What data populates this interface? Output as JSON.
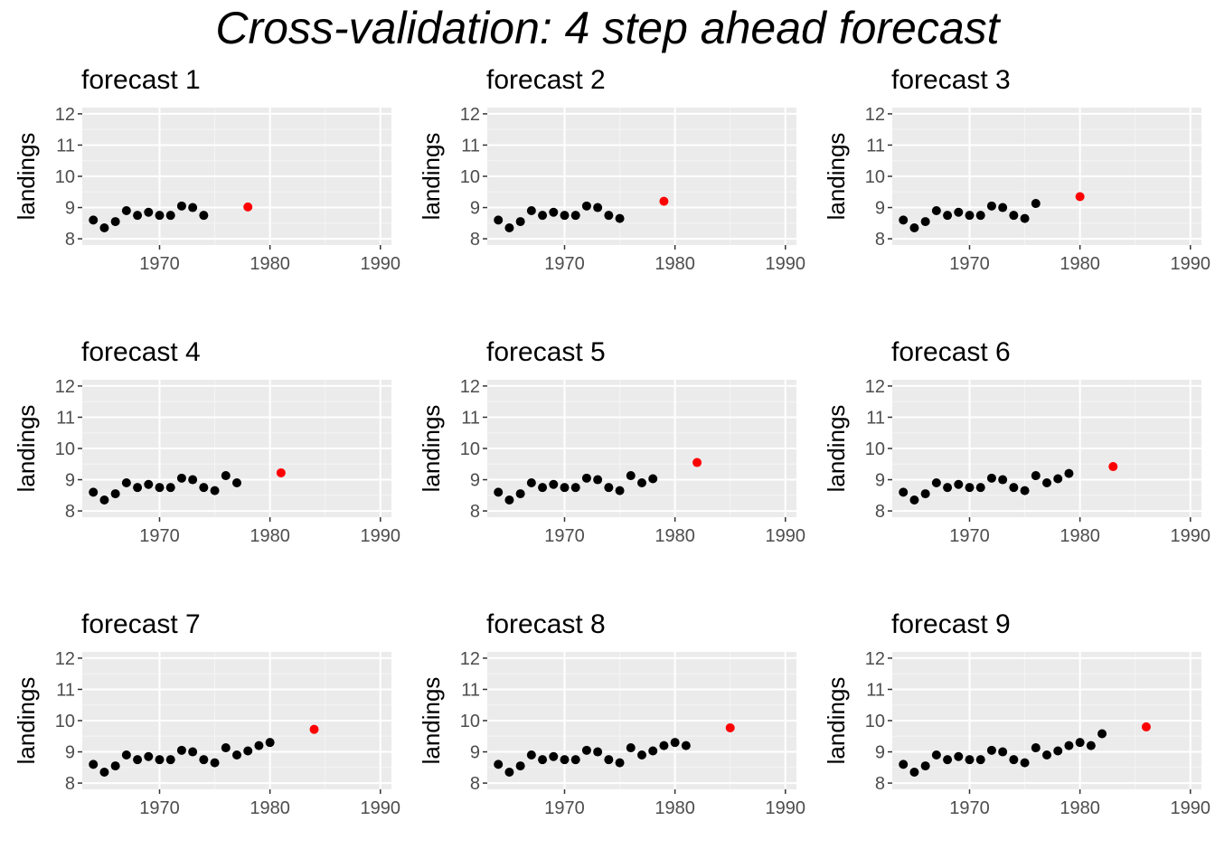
{
  "title": "Cross-validation: 4 step ahead forecast",
  "colors": {
    "panel_background": "#ebebeb",
    "grid_major": "#ffffff",
    "grid_minor": "#f5f5f5",
    "observed": "#000000",
    "forecast": "#ff0000",
    "tick_text": "#4d4d4d",
    "tick_mark": "#333333"
  },
  "chart_data": [
    {
      "type": "scatter",
      "title": "forecast 1",
      "ylabel": "landings",
      "xlabel": "",
      "xlim": [
        1963,
        1991
      ],
      "ylim": [
        7.8,
        12.2
      ],
      "x_ticks": [
        1970,
        1980,
        1990
      ],
      "y_ticks": [
        8,
        9,
        10,
        11,
        12
      ],
      "grid": true,
      "series": [
        {
          "role": "observed",
          "x": [
            1964,
            1965,
            1966,
            1967,
            1968,
            1969,
            1970,
            1971,
            1972,
            1973,
            1974
          ],
          "y": [
            8.6,
            8.35,
            8.55,
            8.9,
            8.75,
            8.85,
            8.75,
            8.75,
            9.05,
            9.0,
            8.75
          ]
        },
        {
          "role": "forecast",
          "x": [
            1978
          ],
          "y": [
            9.02
          ]
        }
      ]
    },
    {
      "type": "scatter",
      "title": "forecast 2",
      "ylabel": "landings",
      "xlabel": "",
      "xlim": [
        1963,
        1991
      ],
      "ylim": [
        7.8,
        12.2
      ],
      "x_ticks": [
        1970,
        1980,
        1990
      ],
      "y_ticks": [
        8,
        9,
        10,
        11,
        12
      ],
      "grid": true,
      "series": [
        {
          "role": "observed",
          "x": [
            1964,
            1965,
            1966,
            1967,
            1968,
            1969,
            1970,
            1971,
            1972,
            1973,
            1974,
            1975
          ],
          "y": [
            8.6,
            8.35,
            8.55,
            8.9,
            8.75,
            8.85,
            8.75,
            8.75,
            9.05,
            9.0,
            8.75,
            8.65
          ]
        },
        {
          "role": "forecast",
          "x": [
            1979
          ],
          "y": [
            9.2
          ]
        }
      ]
    },
    {
      "type": "scatter",
      "title": "forecast 3",
      "ylabel": "landings",
      "xlabel": "",
      "xlim": [
        1963,
        1991
      ],
      "ylim": [
        7.8,
        12.2
      ],
      "x_ticks": [
        1970,
        1980,
        1990
      ],
      "y_ticks": [
        8,
        9,
        10,
        11,
        12
      ],
      "grid": true,
      "series": [
        {
          "role": "observed",
          "x": [
            1964,
            1965,
            1966,
            1967,
            1968,
            1969,
            1970,
            1971,
            1972,
            1973,
            1974,
            1975,
            1976
          ],
          "y": [
            8.6,
            8.35,
            8.55,
            8.9,
            8.75,
            8.85,
            8.75,
            8.75,
            9.05,
            9.0,
            8.75,
            8.65,
            9.13
          ]
        },
        {
          "role": "forecast",
          "x": [
            1980
          ],
          "y": [
            9.35
          ]
        }
      ]
    },
    {
      "type": "scatter",
      "title": "forecast 4",
      "ylabel": "landings",
      "xlabel": "",
      "xlim": [
        1963,
        1991
      ],
      "ylim": [
        7.8,
        12.2
      ],
      "x_ticks": [
        1970,
        1980,
        1990
      ],
      "y_ticks": [
        8,
        9,
        10,
        11,
        12
      ],
      "grid": true,
      "series": [
        {
          "role": "observed",
          "x": [
            1964,
            1965,
            1966,
            1967,
            1968,
            1969,
            1970,
            1971,
            1972,
            1973,
            1974,
            1975,
            1976,
            1977
          ],
          "y": [
            8.6,
            8.35,
            8.55,
            8.9,
            8.75,
            8.85,
            8.75,
            8.75,
            9.05,
            9.0,
            8.75,
            8.65,
            9.13,
            8.9
          ]
        },
        {
          "role": "forecast",
          "x": [
            1981
          ],
          "y": [
            9.22
          ]
        }
      ]
    },
    {
      "type": "scatter",
      "title": "forecast 5",
      "ylabel": "landings",
      "xlabel": "",
      "xlim": [
        1963,
        1991
      ],
      "ylim": [
        7.8,
        12.2
      ],
      "x_ticks": [
        1970,
        1980,
        1990
      ],
      "y_ticks": [
        8,
        9,
        10,
        11,
        12
      ],
      "grid": true,
      "series": [
        {
          "role": "observed",
          "x": [
            1964,
            1965,
            1966,
            1967,
            1968,
            1969,
            1970,
            1971,
            1972,
            1973,
            1974,
            1975,
            1976,
            1977,
            1978
          ],
          "y": [
            8.6,
            8.35,
            8.55,
            8.9,
            8.75,
            8.85,
            8.75,
            8.75,
            9.05,
            9.0,
            8.75,
            8.65,
            9.13,
            8.9,
            9.03
          ]
        },
        {
          "role": "forecast",
          "x": [
            1982
          ],
          "y": [
            9.55
          ]
        }
      ]
    },
    {
      "type": "scatter",
      "title": "forecast 6",
      "ylabel": "landings",
      "xlabel": "",
      "xlim": [
        1963,
        1991
      ],
      "ylim": [
        7.8,
        12.2
      ],
      "x_ticks": [
        1970,
        1980,
        1990
      ],
      "y_ticks": [
        8,
        9,
        10,
        11,
        12
      ],
      "grid": true,
      "series": [
        {
          "role": "observed",
          "x": [
            1964,
            1965,
            1966,
            1967,
            1968,
            1969,
            1970,
            1971,
            1972,
            1973,
            1974,
            1975,
            1976,
            1977,
            1978,
            1979
          ],
          "y": [
            8.6,
            8.35,
            8.55,
            8.9,
            8.75,
            8.85,
            8.75,
            8.75,
            9.05,
            9.0,
            8.75,
            8.65,
            9.13,
            8.9,
            9.03,
            9.2
          ]
        },
        {
          "role": "forecast",
          "x": [
            1983
          ],
          "y": [
            9.42
          ]
        }
      ]
    },
    {
      "type": "scatter",
      "title": "forecast 7",
      "ylabel": "landings",
      "xlabel": "",
      "xlim": [
        1963,
        1991
      ],
      "ylim": [
        7.8,
        12.2
      ],
      "x_ticks": [
        1970,
        1980,
        1990
      ],
      "y_ticks": [
        8,
        9,
        10,
        11,
        12
      ],
      "grid": true,
      "series": [
        {
          "role": "observed",
          "x": [
            1964,
            1965,
            1966,
            1967,
            1968,
            1969,
            1970,
            1971,
            1972,
            1973,
            1974,
            1975,
            1976,
            1977,
            1978,
            1979,
            1980
          ],
          "y": [
            8.6,
            8.35,
            8.55,
            8.9,
            8.75,
            8.85,
            8.75,
            8.75,
            9.05,
            9.0,
            8.75,
            8.65,
            9.13,
            8.9,
            9.03,
            9.2,
            9.3
          ]
        },
        {
          "role": "forecast",
          "x": [
            1984
          ],
          "y": [
            9.72
          ]
        }
      ]
    },
    {
      "type": "scatter",
      "title": "forecast 8",
      "ylabel": "landings",
      "xlabel": "",
      "xlim": [
        1963,
        1991
      ],
      "ylim": [
        7.8,
        12.2
      ],
      "x_ticks": [
        1970,
        1980,
        1990
      ],
      "y_ticks": [
        8,
        9,
        10,
        11,
        12
      ],
      "grid": true,
      "series": [
        {
          "role": "observed",
          "x": [
            1964,
            1965,
            1966,
            1967,
            1968,
            1969,
            1970,
            1971,
            1972,
            1973,
            1974,
            1975,
            1976,
            1977,
            1978,
            1979,
            1980,
            1981
          ],
          "y": [
            8.6,
            8.35,
            8.55,
            8.9,
            8.75,
            8.85,
            8.75,
            8.75,
            9.05,
            9.0,
            8.75,
            8.65,
            9.13,
            8.9,
            9.03,
            9.2,
            9.3,
            9.2
          ]
        },
        {
          "role": "forecast",
          "x": [
            1985
          ],
          "y": [
            9.77
          ]
        }
      ]
    },
    {
      "type": "scatter",
      "title": "forecast 9",
      "ylabel": "landings",
      "xlabel": "",
      "xlim": [
        1963,
        1991
      ],
      "ylim": [
        7.8,
        12.2
      ],
      "x_ticks": [
        1970,
        1980,
        1990
      ],
      "y_ticks": [
        8,
        9,
        10,
        11,
        12
      ],
      "grid": true,
      "series": [
        {
          "role": "observed",
          "x": [
            1964,
            1965,
            1966,
            1967,
            1968,
            1969,
            1970,
            1971,
            1972,
            1973,
            1974,
            1975,
            1976,
            1977,
            1978,
            1979,
            1980,
            1981,
            1982
          ],
          "y": [
            8.6,
            8.35,
            8.55,
            8.9,
            8.75,
            8.85,
            8.75,
            8.75,
            9.05,
            9.0,
            8.75,
            8.65,
            9.13,
            8.9,
            9.03,
            9.2,
            9.3,
            9.2,
            9.58
          ]
        },
        {
          "role": "forecast",
          "x": [
            1986
          ],
          "y": [
            9.8
          ]
        }
      ]
    }
  ]
}
